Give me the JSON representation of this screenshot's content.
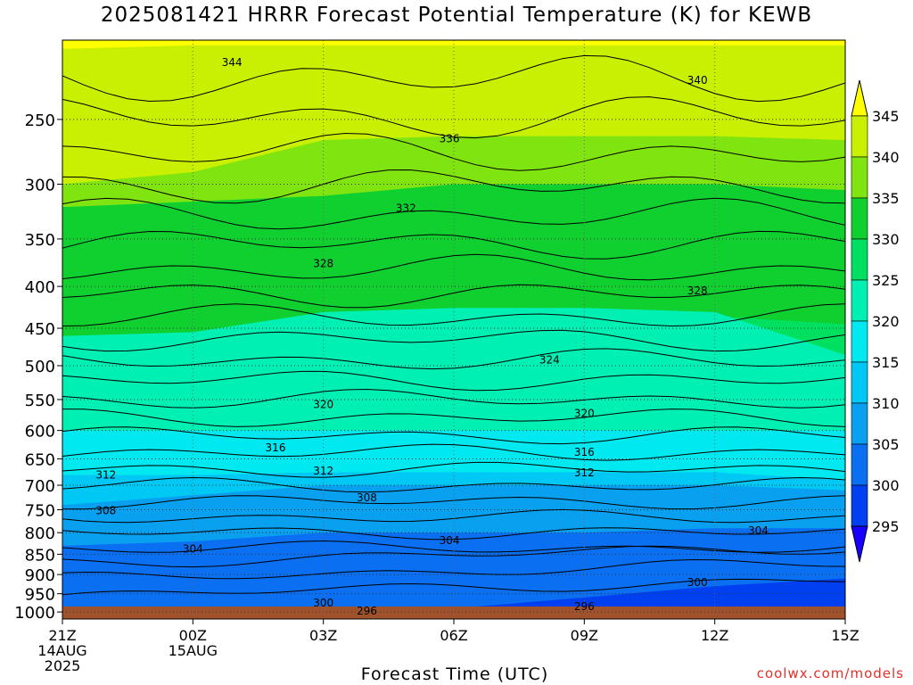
{
  "chart_data": {
    "type": "heatmap",
    "title": "2025081421 HRRR Forecast Potential Temperature (K) for KEWB",
    "xlabel": "Forecast Time (UTC)",
    "ylabel": "",
    "credit": "coolwx.com/models",
    "x_ticks": [
      {
        "hour": 0,
        "lines": [
          "21Z",
          "14AUG",
          "2025"
        ]
      },
      {
        "hour": 3,
        "lines": [
          "00Z",
          "15AUG"
        ]
      },
      {
        "hour": 6,
        "lines": [
          "03Z"
        ]
      },
      {
        "hour": 9,
        "lines": [
          "06Z"
        ]
      },
      {
        "hour": 12,
        "lines": [
          "09Z"
        ]
      },
      {
        "hour": 15,
        "lines": [
          "12Z"
        ]
      },
      {
        "hour": 18,
        "lines": [
          "15Z"
        ]
      }
    ],
    "xlim": [
      0,
      18
    ],
    "ylim_hpa": [
      1020,
      200
    ],
    "y_ticks": [
      250,
      300,
      350,
      400,
      450,
      500,
      550,
      600,
      650,
      700,
      750,
      800,
      850,
      900,
      950,
      1000
    ],
    "colorbar": {
      "levels": [
        295,
        300,
        305,
        310,
        315,
        320,
        325,
        330,
        335,
        340,
        345
      ],
      "colors": [
        "#1800ff",
        "#0040f0",
        "#0a6ff0",
        "#0aa0f0",
        "#00c8f5",
        "#00e8f0",
        "#00f0b4",
        "#00e060",
        "#10d030",
        "#80e410",
        "#c8f000",
        "#ffff00"
      ],
      "extend": "both"
    },
    "contour_labels": [
      {
        "value": "344",
        "hour": 3.9,
        "p": 213
      },
      {
        "value": "340",
        "hour": 14.6,
        "p": 224
      },
      {
        "value": "336",
        "hour": 8.9,
        "p": 264
      },
      {
        "value": "332",
        "hour": 7.9,
        "p": 321
      },
      {
        "value": "328",
        "hour": 6.0,
        "p": 375
      },
      {
        "value": "328",
        "hour": 14.6,
        "p": 405
      },
      {
        "value": "324",
        "hour": 11.2,
        "p": 492
      },
      {
        "value": "320",
        "hour": 6.0,
        "p": 558
      },
      {
        "value": "320",
        "hour": 12.0,
        "p": 572
      },
      {
        "value": "316",
        "hour": 4.9,
        "p": 630
      },
      {
        "value": "316",
        "hour": 12.0,
        "p": 638
      },
      {
        "value": "312",
        "hour": 1.0,
        "p": 680
      },
      {
        "value": "312",
        "hour": 6.0,
        "p": 672
      },
      {
        "value": "312",
        "hour": 12.0,
        "p": 676
      },
      {
        "value": "308",
        "hour": 7.0,
        "p": 725
      },
      {
        "value": "308",
        "hour": 1.0,
        "p": 752
      },
      {
        "value": "304",
        "hour": 3.0,
        "p": 838
      },
      {
        "value": "304",
        "hour": 8.9,
        "p": 818
      },
      {
        "value": "304",
        "hour": 16.0,
        "p": 796
      },
      {
        "value": "300",
        "hour": 14.6,
        "p": 920
      },
      {
        "value": "300",
        "hour": 6.0,
        "p": 975
      },
      {
        "value": "296",
        "hour": 7.0,
        "p": 997
      },
      {
        "value": "296",
        "hour": 12.0,
        "p": 985
      }
    ],
    "grid": "dotted",
    "terrain_below_hpa": 1010
  }
}
